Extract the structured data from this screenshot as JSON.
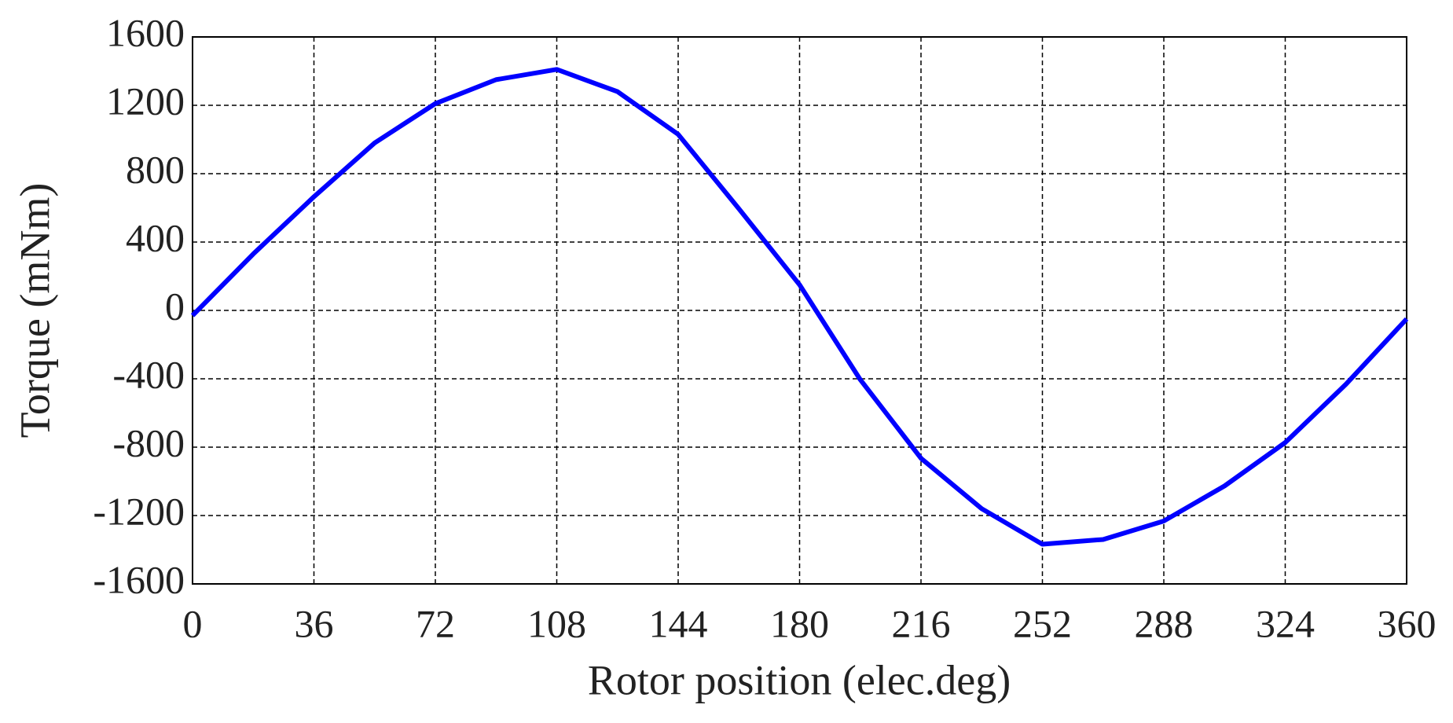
{
  "chart_data": {
    "type": "line",
    "x_label": "Rotor position (elec.deg)",
    "y_label": "Torque (mNm)",
    "x": [
      0,
      18,
      36,
      54,
      72,
      90,
      108,
      126,
      144,
      162,
      180,
      198,
      216,
      234,
      252,
      270,
      288,
      306,
      324,
      342,
      360
    ],
    "series": [
      {
        "name": "Torque",
        "color": "#0000ff",
        "values": [
          -30,
          330,
          665,
          980,
          1210,
          1350,
          1410,
          1280,
          1030,
          595,
          150,
          -405,
          -865,
          -1160,
          -1368,
          -1340,
          -1232,
          -1027,
          -773,
          -432,
          -50
        ]
      }
    ],
    "xlim": [
      0,
      360
    ],
    "xticks": [
      0,
      36,
      72,
      108,
      144,
      180,
      216,
      252,
      288,
      324,
      360
    ],
    "ylim": [
      -1600,
      1600
    ],
    "yticks": [
      -1600,
      -1200,
      -800,
      -400,
      0,
      400,
      800,
      1200,
      1600
    ],
    "grid": true
  }
}
